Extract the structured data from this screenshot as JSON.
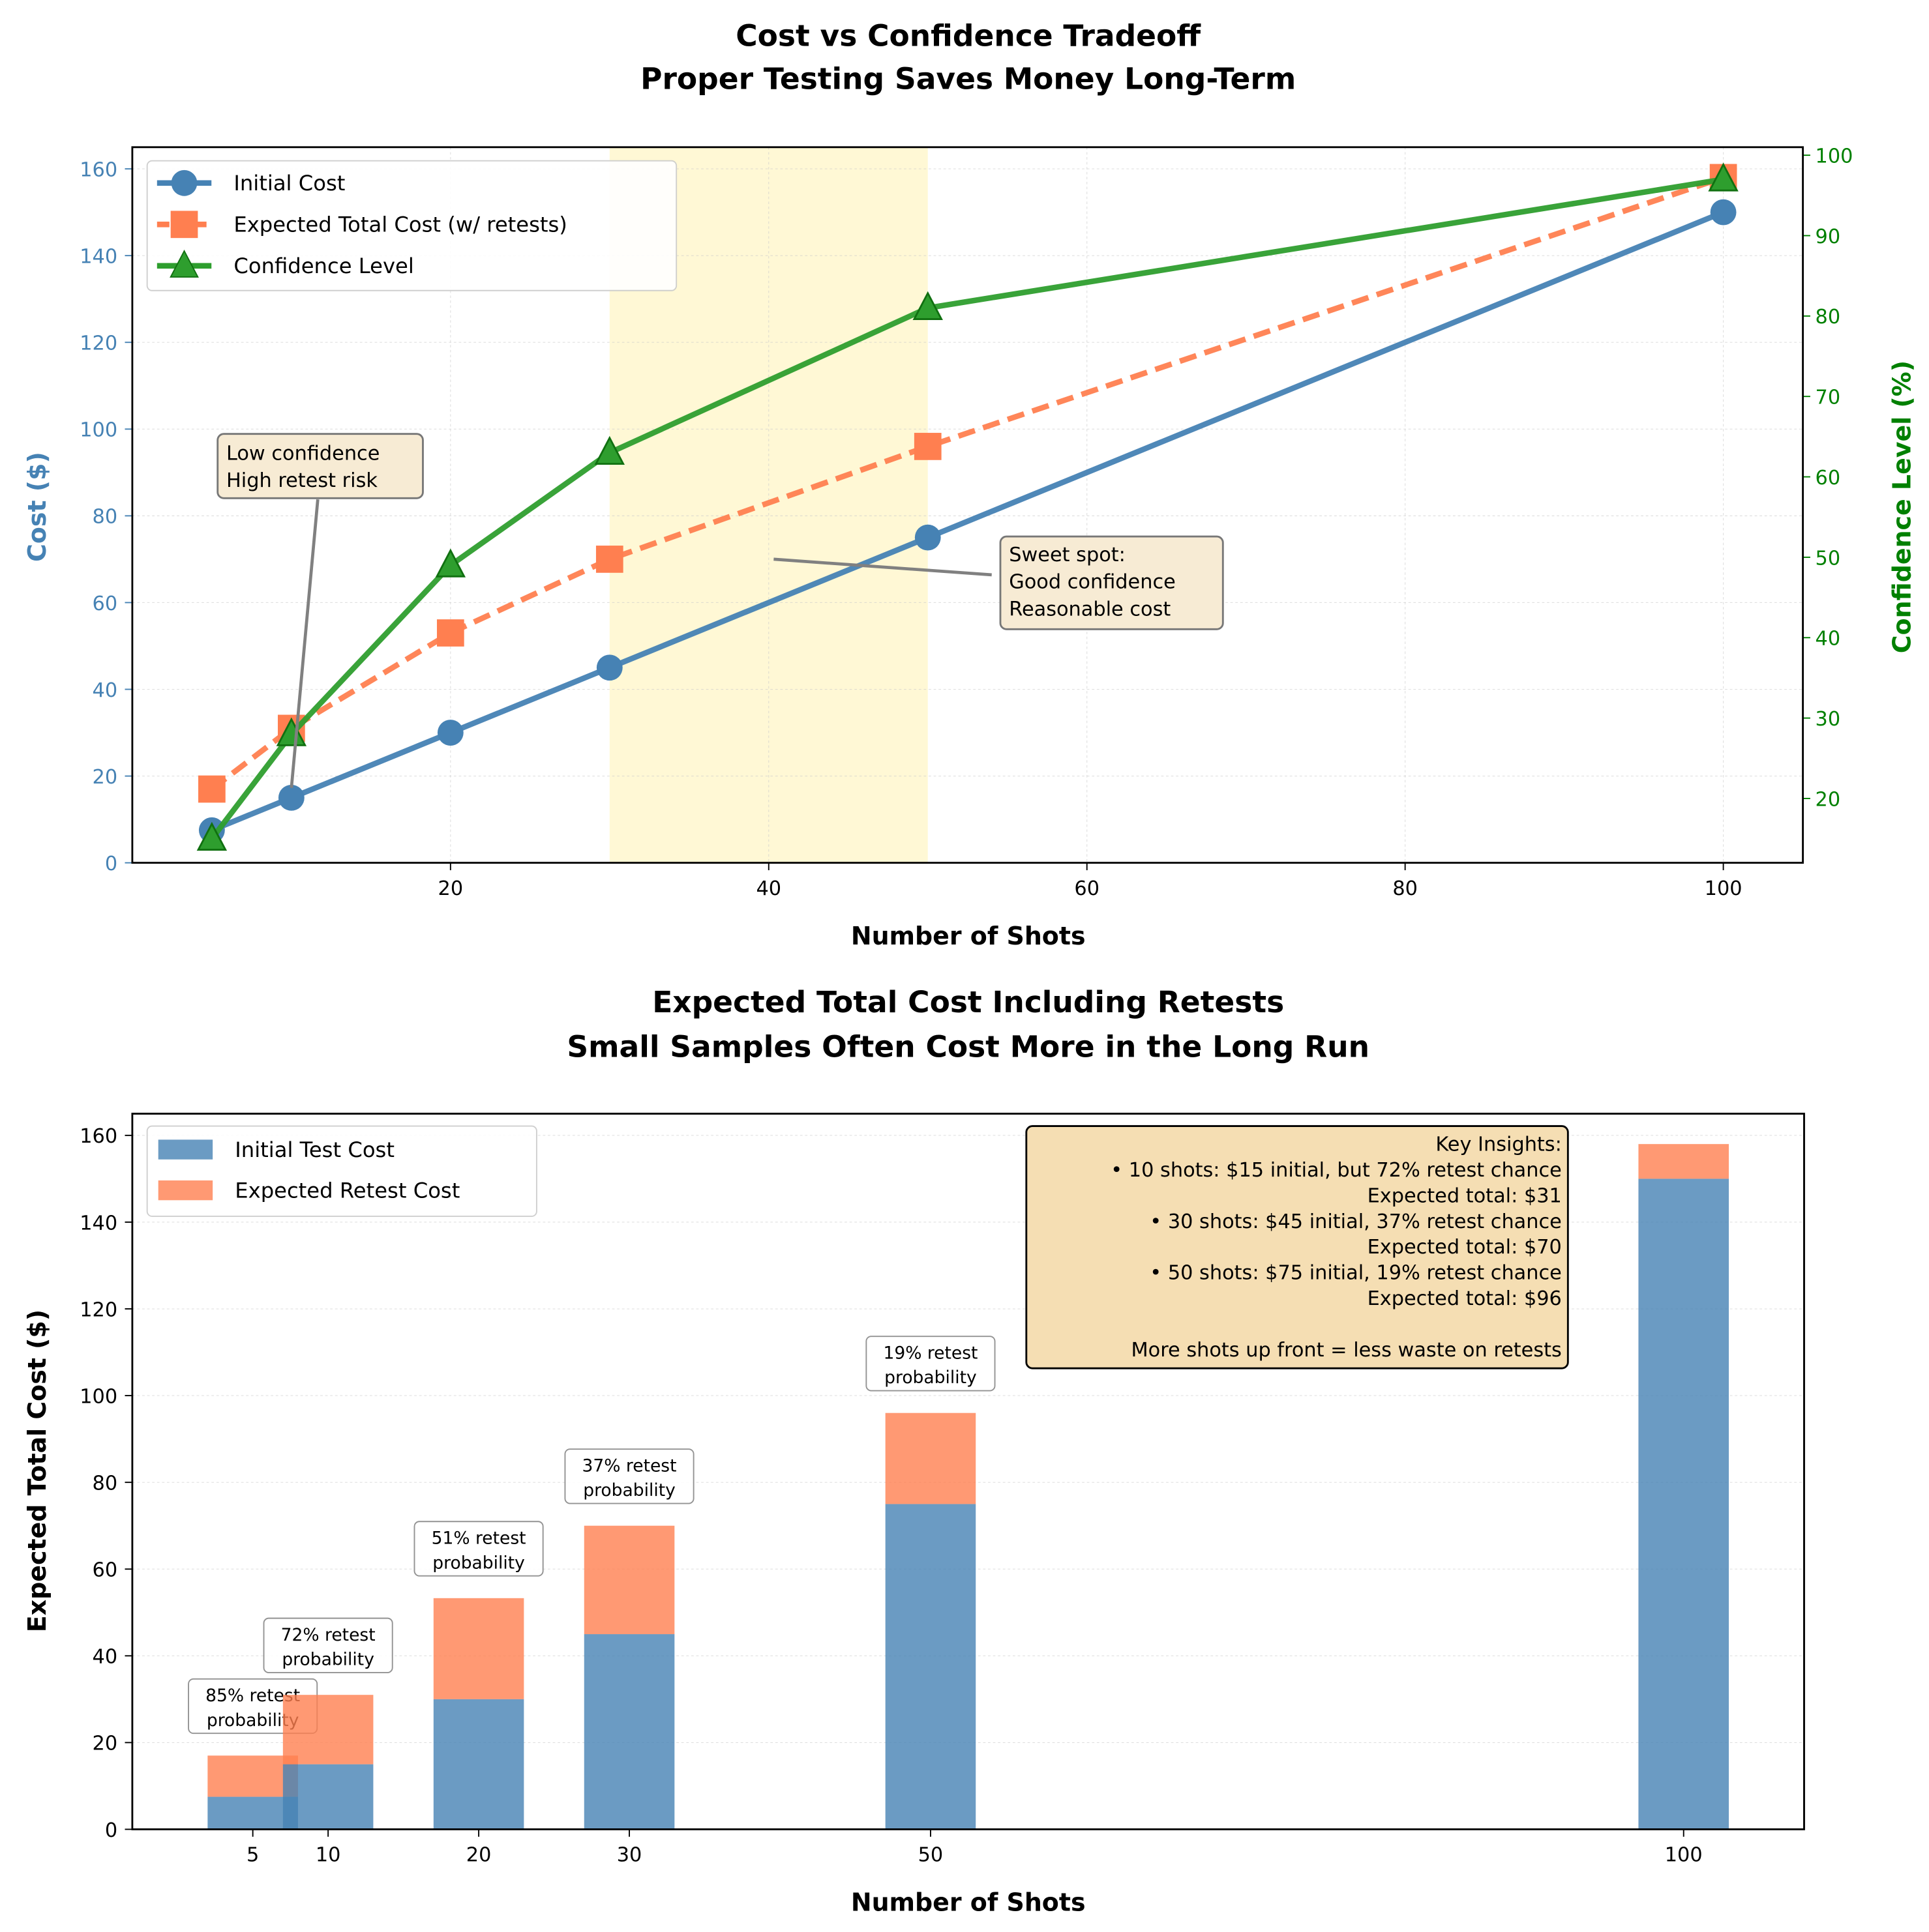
{
  "chart_data": [
    {
      "type": "line",
      "title": "Cost vs Confidence Tradeoff",
      "subtitle": "Proper Testing Saves Money Long-Term",
      "xlabel": "Number of Shots",
      "ylabel": "Cost ($)",
      "ylabel_right": "Confidence Level (%)",
      "x": [
        5,
        10,
        20,
        30,
        50,
        100
      ],
      "xlim": [
        0,
        105
      ],
      "ylim": [
        0,
        165
      ],
      "ylim_right": [
        12,
        101
      ],
      "xticks": [
        "20",
        "40",
        "60",
        "80",
        "100"
      ],
      "yticks": [
        "0",
        "20",
        "40",
        "60",
        "80",
        "100",
        "120",
        "140",
        "160"
      ],
      "yticks_right": [
        "20",
        "30",
        "40",
        "50",
        "60",
        "70",
        "80",
        "90",
        "100"
      ],
      "grid": true,
      "legend_position": "top-left",
      "highlight_band": [
        30,
        50
      ],
      "series": [
        {
          "name": "Initial Cost",
          "axis": "left",
          "values": [
            7.5,
            15,
            30,
            45,
            75,
            150
          ],
          "color": "#4682b4",
          "marker": "circle",
          "style": "solid"
        },
        {
          "name": "Expected Total Cost (w/ retests)",
          "axis": "left",
          "values": [
            17,
            31,
            53,
            70,
            96,
            158
          ],
          "color": "#ff7f50",
          "marker": "square",
          "style": "dashed"
        },
        {
          "name": "Confidence Level",
          "axis": "right",
          "values": [
            15,
            28,
            49,
            63,
            81,
            97
          ],
          "color": "#2e9e2e",
          "marker": "triangle",
          "style": "solid"
        }
      ],
      "annotations": [
        {
          "text": [
            "Low confidence",
            "High retest risk"
          ],
          "target_x": 10,
          "target_y": 15
        },
        {
          "text": [
            "Sweet spot:",
            "Good confidence",
            "Reasonable cost"
          ],
          "target_x": 40,
          "target_y": 70
        }
      ]
    },
    {
      "type": "bar",
      "title": "Expected Total Cost Including Retests",
      "subtitle": "Small Samples Often Cost More in the Long Run",
      "xlabel": "Number of Shots",
      "ylabel": "Expected Total Cost ($)",
      "categories": [
        "5",
        "10",
        "20",
        "30",
        "50",
        "100"
      ],
      "x": [
        5,
        10,
        20,
        30,
        50,
        100
      ],
      "xlim": [
        -3,
        108
      ],
      "ylim": [
        0,
        165
      ],
      "yticks": [
        "0",
        "20",
        "40",
        "60",
        "80",
        "100",
        "120",
        "140",
        "160"
      ],
      "grid": true,
      "stacked": true,
      "legend_position": "top-left",
      "series": [
        {
          "name": "Initial Test Cost",
          "values": [
            7.5,
            15,
            30,
            45,
            75,
            150
          ],
          "color": "#4682b4"
        },
        {
          "name": "Expected Retest Cost",
          "values": [
            9.5,
            16,
            23.3,
            25,
            21,
            8
          ],
          "color": "#ff7f50"
        }
      ],
      "bar_labels": [
        [
          "85% retest",
          "probability"
        ],
        [
          "72% retest",
          "probability"
        ],
        [
          "51% retest",
          "probability"
        ],
        [
          "37% retest",
          "probability"
        ],
        [
          "19% retest",
          "probability"
        ]
      ],
      "insights": [
        "Key Insights:",
        "• 10 shots: $15 initial, but 72% retest chance",
        "Expected total: $31",
        "• 30 shots: $45 initial, 37% retest chance",
        "Expected total: $70",
        "• 50 shots: $75 initial, 19% retest chance",
        "Expected total: $96",
        "",
        "More shots up front = less waste on retests"
      ]
    }
  ]
}
